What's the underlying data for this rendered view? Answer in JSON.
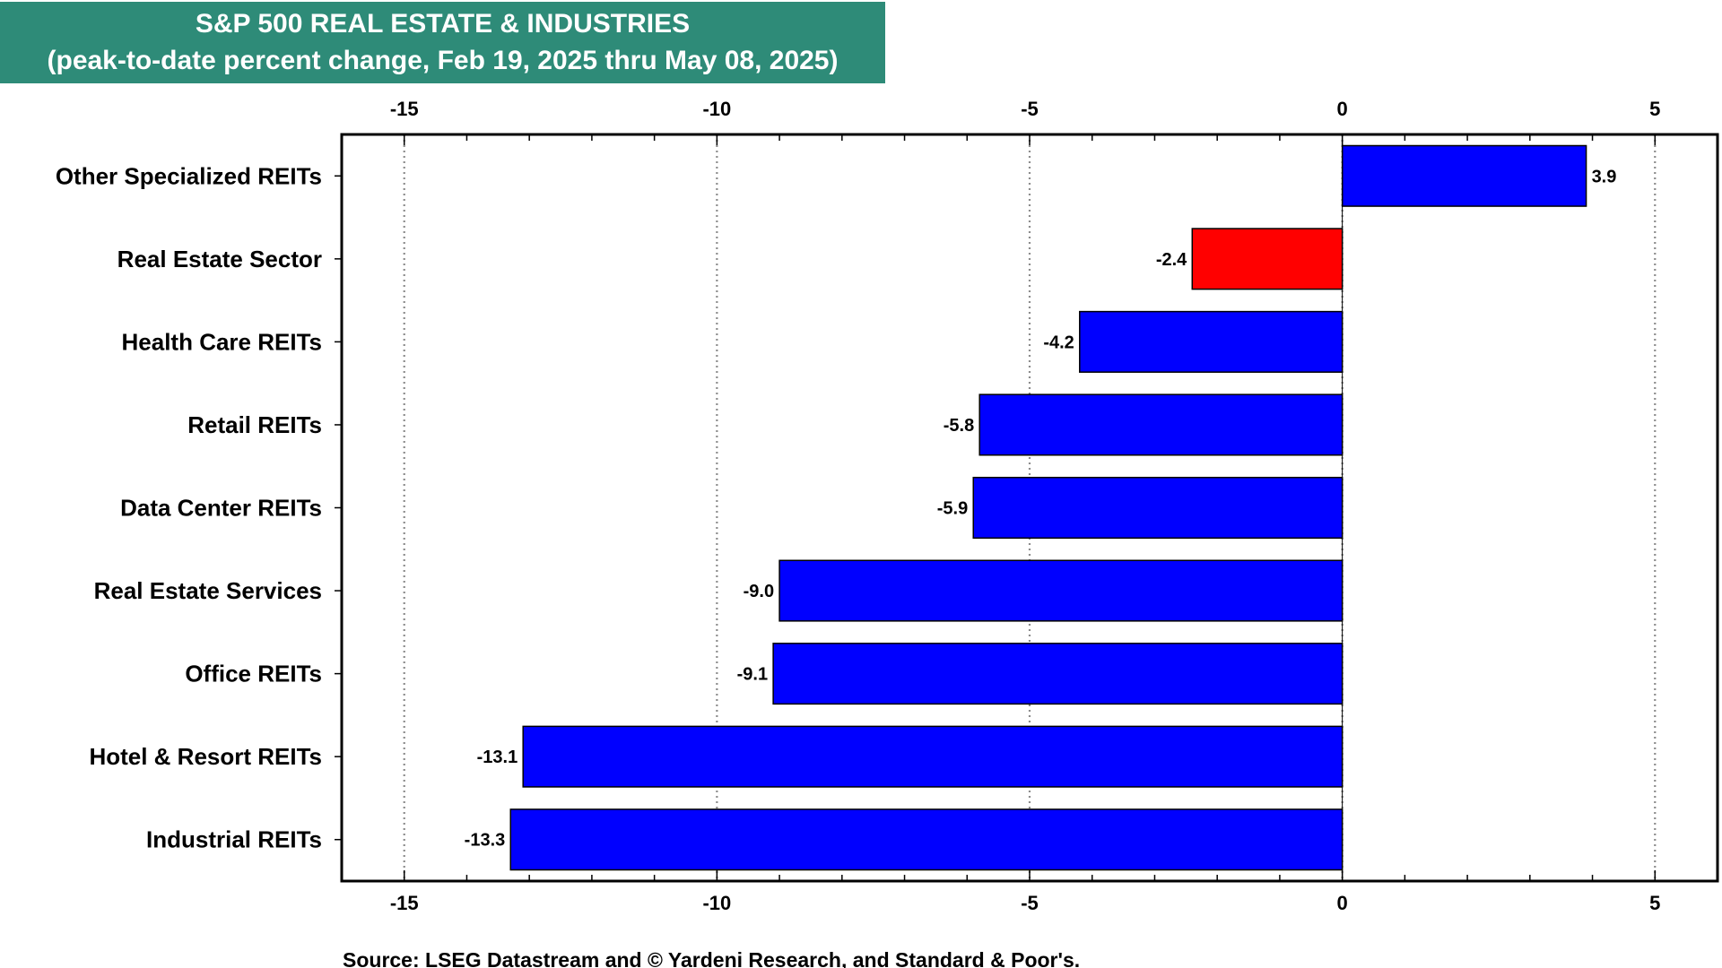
{
  "title": {
    "line1": "S&P 500 REAL ESTATE & INDUSTRIES",
    "line2": "(peak-to-date percent change, Feb 19, 2025 thru May 08, 2025)"
  },
  "source": "Source: LSEG Datastream and © Yardeni Research, and Standard & Poor's.",
  "colors": {
    "title_bg": "#2e8b78",
    "bar_default": "#0000ff",
    "bar_highlight": "#ff0000"
  },
  "chart_data": {
    "type": "bar",
    "orientation": "horizontal",
    "categories": [
      "Other Specialized REITs",
      "Real Estate Sector",
      "Health Care REITs",
      "Retail REITs",
      "Data Center REITs",
      "Real Estate Services",
      "Office REITs",
      "Hotel & Resort REITs",
      "Industrial REITs"
    ],
    "values": [
      3.9,
      -2.4,
      -4.2,
      -5.8,
      -5.9,
      -9.0,
      -9.1,
      -13.1,
      -13.3
    ],
    "value_labels": [
      "3.9",
      "-2.4",
      "-4.2",
      "-5.8",
      "-5.9",
      "-9.0",
      "-9.1",
      "-13.1",
      "-13.3"
    ],
    "highlight_index": 1,
    "xlim": [
      -16,
      6
    ],
    "xticks": [
      -15,
      -10,
      -5,
      0,
      5
    ],
    "xtick_labels": [
      "-15",
      "-10",
      "-5",
      "0",
      "5"
    ],
    "grid": "vertical dotted",
    "axis_labels_top_and_bottom": true
  }
}
